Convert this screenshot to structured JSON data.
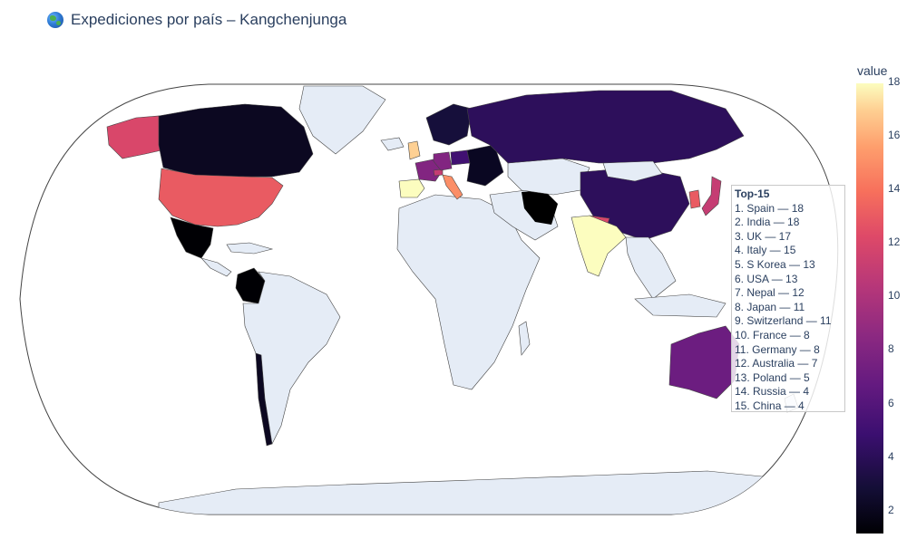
{
  "title": "Expediciones por país – Kangchenjunga",
  "title_icon": "globe-icon",
  "colorbar": {
    "title": "value",
    "ticks": [
      "2",
      "4",
      "6",
      "8",
      "10",
      "12",
      "14",
      "16",
      "18"
    ],
    "min": 1,
    "max": 18,
    "colorscale": "magma"
  },
  "annotation": {
    "heading": "Top-15",
    "lines": [
      "1. Spain — 18",
      "2. India — 18",
      "3. UK — 17",
      "4. Italy — 15",
      "5. S Korea — 13",
      "6. USA — 13",
      "7. Nepal — 12",
      "8. Japan — 11",
      "9. Switzerland — 11",
      "10. France — 8",
      "11. Germany — 8",
      "12. Australia — 7",
      "13. Poland — 5",
      "14. Russia — 4",
      "15. China — 4"
    ]
  },
  "map_data": {
    "projection": "natural earth",
    "no_data_color": "#e5ecf6",
    "border_color": "#444444",
    "countries": [
      {
        "name": "Spain",
        "value": 18
      },
      {
        "name": "India",
        "value": 18
      },
      {
        "name": "UK",
        "value": 17
      },
      {
        "name": "Italy",
        "value": 15
      },
      {
        "name": "S Korea",
        "value": 13
      },
      {
        "name": "USA",
        "value": 13
      },
      {
        "name": "Nepal",
        "value": 12
      },
      {
        "name": "Japan",
        "value": 11
      },
      {
        "name": "Switzerland",
        "value": 11
      },
      {
        "name": "France",
        "value": 8
      },
      {
        "name": "Germany",
        "value": 8
      },
      {
        "name": "Australia",
        "value": 7
      },
      {
        "name": "Poland",
        "value": 5
      },
      {
        "name": "Russia",
        "value": 4
      },
      {
        "name": "China",
        "value": 4
      }
    ]
  }
}
